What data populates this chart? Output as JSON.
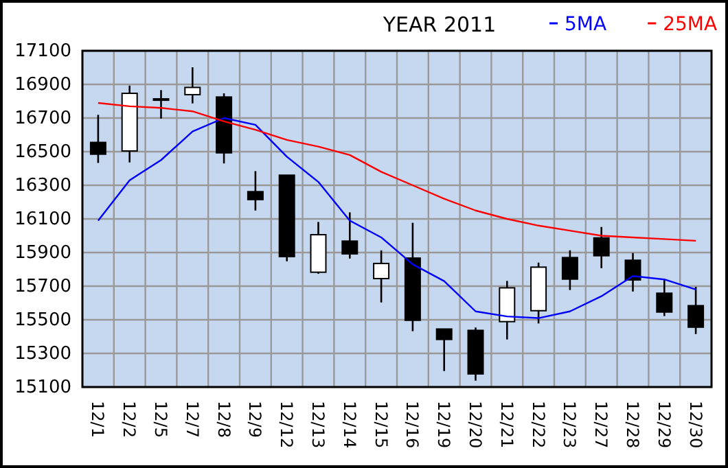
{
  "chart_data": {
    "type": "candlestick",
    "title": "YEAR 2011",
    "categories": [
      "12/1",
      "12/2",
      "12/5",
      "12/7",
      "12/8",
      "12/9",
      "12/12",
      "12/13",
      "12/14",
      "12/15",
      "12/16",
      "12/19",
      "12/20",
      "12/21",
      "12/22",
      "12/23",
      "12/27",
      "12/28",
      "12/29",
      "12/30"
    ],
    "ohlc": [
      [
        16555,
        16719,
        16433,
        16485
      ],
      [
        16504,
        16893,
        16436,
        16847
      ],
      [
        16810,
        16866,
        16697,
        16814
      ],
      [
        16839,
        17002,
        16787,
        16882
      ],
      [
        16825,
        16847,
        16430,
        16493
      ],
      [
        16262,
        16384,
        16150,
        16215
      ],
      [
        16360,
        16360,
        15848,
        15876
      ],
      [
        15783,
        16082,
        15774,
        16006
      ],
      [
        15968,
        16139,
        15864,
        15892
      ],
      [
        15745,
        15913,
        15603,
        15835
      ],
      [
        15867,
        16077,
        15432,
        15497
      ],
      [
        15445,
        15445,
        15195,
        15383
      ],
      [
        15437,
        15454,
        15138,
        15178
      ],
      [
        15489,
        15731,
        15383,
        15690
      ],
      [
        15554,
        15840,
        15478,
        15813
      ],
      [
        15870,
        15913,
        15677,
        15742
      ],
      [
        15987,
        16052,
        15807,
        15881
      ],
      [
        15854,
        15897,
        15668,
        15737
      ],
      [
        15658,
        15739,
        15522,
        15546
      ],
      [
        15584,
        15696,
        15415,
        15456
      ]
    ],
    "series": [
      {
        "type": "line",
        "name": "5MA",
        "color": "#0000ff",
        "values": [
          16090,
          16330,
          16450,
          16620,
          16700,
          16660,
          16470,
          16320,
          16090,
          15990,
          15830,
          15730,
          15550,
          15520,
          15510,
          15550,
          15640,
          15760,
          15740,
          15680
        ]
      },
      {
        "type": "line",
        "name": "25MA",
        "color": "#ff0000",
        "values": [
          16790,
          16770,
          16760,
          16740,
          16680,
          16630,
          16570,
          16530,
          16480,
          16380,
          16300,
          16220,
          16150,
          16100,
          16060,
          16030,
          16000,
          15990,
          15980,
          15970
        ]
      }
    ],
    "ylim": [
      15100,
      17100
    ],
    "yticks": [
      15100,
      15300,
      15500,
      15700,
      15900,
      16100,
      16300,
      16500,
      16700,
      16900,
      17100
    ],
    "grid": true,
    "legend": "top right"
  }
}
